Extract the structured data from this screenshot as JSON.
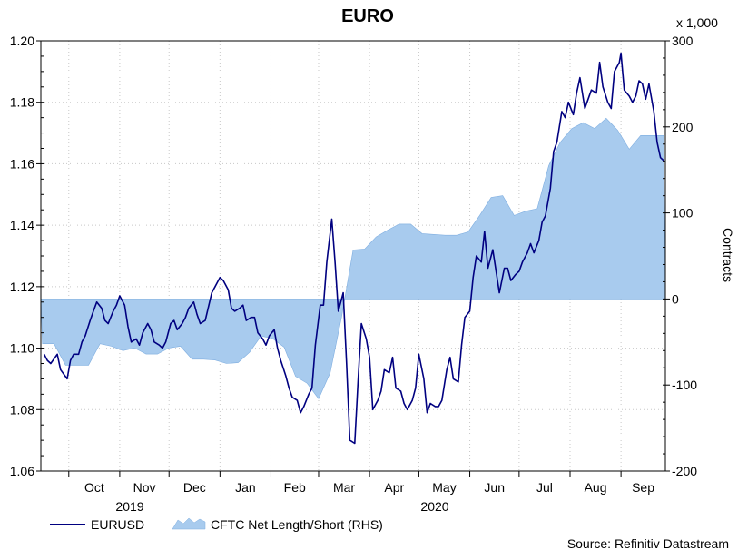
{
  "chart_data": {
    "type": "line",
    "title": "EURO",
    "y_left": {
      "label": "",
      "range": [
        1.06,
        1.2
      ],
      "ticks": [
        "1.06",
        "1.08",
        "1.10",
        "1.12",
        "1.14",
        "1.16",
        "1.18",
        "1.20"
      ]
    },
    "y_right": {
      "label": "Contracts",
      "unit": "x 1,000",
      "range": [
        -200,
        300
      ],
      "ticks": [
        "-200",
        "-100",
        "0",
        "100",
        "200",
        "300"
      ]
    },
    "x_axis": {
      "months": [
        "Oct",
        "Nov",
        "Dec",
        "Jan",
        "Feb",
        "Mar",
        "Apr",
        "May",
        "Jun",
        "Jul",
        "Aug",
        "Sep"
      ],
      "years": [
        "2019",
        "2020"
      ]
    },
    "grid": true,
    "legend_position": "bottom-left",
    "series": [
      {
        "name": "EURUSD",
        "axis": "left",
        "color": "#000080",
        "points": [
          [
            "2019-09-16",
            1.098
          ],
          [
            "2019-09-18",
            1.096
          ],
          [
            "2019-09-20",
            1.095
          ],
          [
            "2019-09-24",
            1.098
          ],
          [
            "2019-09-26",
            1.093
          ],
          [
            "2019-09-30",
            1.09
          ],
          [
            "2019-10-02",
            1.096
          ],
          [
            "2019-10-04",
            1.098
          ],
          [
            "2019-10-07",
            1.098
          ],
          [
            "2019-10-09",
            1.102
          ],
          [
            "2019-10-11",
            1.104
          ],
          [
            "2019-10-14",
            1.109
          ],
          [
            "2019-10-16",
            1.112
          ],
          [
            "2019-10-18",
            1.115
          ],
          [
            "2019-10-21",
            1.113
          ],
          [
            "2019-10-23",
            1.109
          ],
          [
            "2019-10-25",
            1.108
          ],
          [
            "2019-10-28",
            1.112
          ],
          [
            "2019-10-30",
            1.114
          ],
          [
            "2019-11-01",
            1.117
          ],
          [
            "2019-11-04",
            1.114
          ],
          [
            "2019-11-06",
            1.107
          ],
          [
            "2019-11-08",
            1.102
          ],
          [
            "2019-11-11",
            1.103
          ],
          [
            "2019-11-13",
            1.101
          ],
          [
            "2019-11-15",
            1.105
          ],
          [
            "2019-11-18",
            1.108
          ],
          [
            "2019-11-20",
            1.106
          ],
          [
            "2019-11-22",
            1.102
          ],
          [
            "2019-11-25",
            1.101
          ],
          [
            "2019-11-27",
            1.1
          ],
          [
            "2019-11-29",
            1.102
          ],
          [
            "2019-12-02",
            1.108
          ],
          [
            "2019-12-04",
            1.109
          ],
          [
            "2019-12-06",
            1.106
          ],
          [
            "2019-12-09",
            1.108
          ],
          [
            "2019-12-11",
            1.11
          ],
          [
            "2019-12-13",
            1.113
          ],
          [
            "2019-12-16",
            1.115
          ],
          [
            "2019-12-18",
            1.111
          ],
          [
            "2019-12-20",
            1.108
          ],
          [
            "2019-12-23",
            1.109
          ],
          [
            "2019-12-27",
            1.118
          ],
          [
            "2019-12-30",
            1.121
          ],
          [
            "2020-01-01",
            1.123
          ],
          [
            "2020-01-03",
            1.122
          ],
          [
            "2020-01-06",
            1.119
          ],
          [
            "2020-01-08",
            1.113
          ],
          [
            "2020-01-10",
            1.112
          ],
          [
            "2020-01-13",
            1.113
          ],
          [
            "2020-01-15",
            1.114
          ],
          [
            "2020-01-17",
            1.109
          ],
          [
            "2020-01-20",
            1.11
          ],
          [
            "2020-01-22",
            1.11
          ],
          [
            "2020-01-24",
            1.105
          ],
          [
            "2020-01-27",
            1.103
          ],
          [
            "2020-01-29",
            1.101
          ],
          [
            "2020-01-31",
            1.104
          ],
          [
            "2020-02-03",
            1.106
          ],
          [
            "2020-02-05",
            1.1
          ],
          [
            "2020-02-07",
            1.096
          ],
          [
            "2020-02-10",
            1.091
          ],
          [
            "2020-02-12",
            1.087
          ],
          [
            "2020-02-14",
            1.084
          ],
          [
            "2020-02-17",
            1.083
          ],
          [
            "2020-02-19",
            1.079
          ],
          [
            "2020-02-21",
            1.081
          ],
          [
            "2020-02-24",
            1.085
          ],
          [
            "2020-02-26",
            1.087
          ],
          [
            "2020-02-28",
            1.101
          ],
          [
            "2020-03-02",
            1.114
          ],
          [
            "2020-03-04",
            1.114
          ],
          [
            "2020-03-06",
            1.128
          ],
          [
            "2020-03-09",
            1.142
          ],
          [
            "2020-03-11",
            1.128
          ],
          [
            "2020-03-13",
            1.112
          ],
          [
            "2020-03-16",
            1.118
          ],
          [
            "2020-03-18",
            1.095
          ],
          [
            "2020-03-20",
            1.07
          ],
          [
            "2020-03-23",
            1.069
          ],
          [
            "2020-03-25",
            1.089
          ],
          [
            "2020-03-27",
            1.108
          ],
          [
            "2020-03-30",
            1.103
          ],
          [
            "2020-04-01",
            1.097
          ],
          [
            "2020-04-03",
            1.08
          ],
          [
            "2020-04-06",
            1.083
          ],
          [
            "2020-04-08",
            1.086
          ],
          [
            "2020-04-10",
            1.093
          ],
          [
            "2020-04-13",
            1.092
          ],
          [
            "2020-04-15",
            1.097
          ],
          [
            "2020-04-17",
            1.087
          ],
          [
            "2020-04-20",
            1.086
          ],
          [
            "2020-04-22",
            1.082
          ],
          [
            "2020-04-24",
            1.08
          ],
          [
            "2020-04-27",
            1.083
          ],
          [
            "2020-04-29",
            1.087
          ],
          [
            "2020-05-01",
            1.098
          ],
          [
            "2020-05-04",
            1.09
          ],
          [
            "2020-05-06",
            1.079
          ],
          [
            "2020-05-08",
            1.082
          ],
          [
            "2020-05-11",
            1.081
          ],
          [
            "2020-05-13",
            1.081
          ],
          [
            "2020-05-15",
            1.083
          ],
          [
            "2020-05-18",
            1.093
          ],
          [
            "2020-05-20",
            1.097
          ],
          [
            "2020-05-22",
            1.09
          ],
          [
            "2020-05-25",
            1.089
          ],
          [
            "2020-05-27",
            1.101
          ],
          [
            "2020-05-29",
            1.11
          ],
          [
            "2020-06-01",
            1.112
          ],
          [
            "2020-06-03",
            1.123
          ],
          [
            "2020-06-05",
            1.13
          ],
          [
            "2020-06-08",
            1.128
          ],
          [
            "2020-06-10",
            1.138
          ],
          [
            "2020-06-12",
            1.126
          ],
          [
            "2020-06-15",
            1.132
          ],
          [
            "2020-06-17",
            1.125
          ],
          [
            "2020-06-19",
            1.118
          ],
          [
            "2020-06-22",
            1.126
          ],
          [
            "2020-06-24",
            1.126
          ],
          [
            "2020-06-26",
            1.122
          ],
          [
            "2020-06-29",
            1.124
          ],
          [
            "2020-07-01",
            1.125
          ],
          [
            "2020-07-03",
            1.128
          ],
          [
            "2020-07-06",
            1.131
          ],
          [
            "2020-07-08",
            1.134
          ],
          [
            "2020-07-10",
            1.131
          ],
          [
            "2020-07-13",
            1.135
          ],
          [
            "2020-07-15",
            1.141
          ],
          [
            "2020-07-17",
            1.143
          ],
          [
            "2020-07-20",
            1.152
          ],
          [
            "2020-07-22",
            1.164
          ],
          [
            "2020-07-24",
            1.167
          ],
          [
            "2020-07-27",
            1.177
          ],
          [
            "2020-07-29",
            1.175
          ],
          [
            "2020-07-31",
            1.18
          ],
          [
            "2020-08-03",
            1.176
          ],
          [
            "2020-08-05",
            1.183
          ],
          [
            "2020-08-07",
            1.188
          ],
          [
            "2020-08-10",
            1.178
          ],
          [
            "2020-08-12",
            1.181
          ],
          [
            "2020-08-14",
            1.184
          ],
          [
            "2020-08-17",
            1.183
          ],
          [
            "2020-08-19",
            1.193
          ],
          [
            "2020-08-21",
            1.185
          ],
          [
            "2020-08-24",
            1.18
          ],
          [
            "2020-08-26",
            1.178
          ],
          [
            "2020-08-28",
            1.19
          ],
          [
            "2020-08-31",
            1.193
          ],
          [
            "2020-09-01",
            1.196
          ],
          [
            "2020-09-03",
            1.184
          ],
          [
            "2020-09-06",
            1.182
          ],
          [
            "2020-09-08",
            1.18
          ],
          [
            "2020-09-10",
            1.182
          ],
          [
            "2020-09-12",
            1.187
          ],
          [
            "2020-09-14",
            1.186
          ],
          [
            "2020-09-16",
            1.181
          ],
          [
            "2020-09-18",
            1.186
          ],
          [
            "2020-09-21",
            1.177
          ],
          [
            "2020-09-23",
            1.167
          ],
          [
            "2020-09-25",
            1.162
          ],
          [
            "2020-09-27",
            1.161
          ]
        ]
      },
      {
        "name": "CFTC Net Length/Short (RHS)",
        "axis": "right",
        "type": "area",
        "color": "#a8cbee",
        "edge_color": "#7faee0",
        "points": [
          [
            "2019-09-14",
            0
          ],
          [
            "2019-09-15",
            -52
          ],
          [
            "2019-09-22",
            -52
          ],
          [
            "2019-09-29",
            -77
          ],
          [
            "2019-10-06",
            -77
          ],
          [
            "2019-10-13",
            -77
          ],
          [
            "2019-10-20",
            -52
          ],
          [
            "2019-10-27",
            -55
          ],
          [
            "2019-11-03",
            -60
          ],
          [
            "2019-11-10",
            -57
          ],
          [
            "2019-11-17",
            -64
          ],
          [
            "2019-11-24",
            -64
          ],
          [
            "2019-12-01",
            -57
          ],
          [
            "2019-12-08",
            -55
          ],
          [
            "2019-12-15",
            -70
          ],
          [
            "2019-12-22",
            -70
          ],
          [
            "2019-12-29",
            -71
          ],
          [
            "2020-01-05",
            -75
          ],
          [
            "2020-01-12",
            -74
          ],
          [
            "2020-01-19",
            -62
          ],
          [
            "2020-01-26",
            -43
          ],
          [
            "2020-02-02",
            -46
          ],
          [
            "2020-02-09",
            -56
          ],
          [
            "2020-02-16",
            -90
          ],
          [
            "2020-02-23",
            -98
          ],
          [
            "2020-03-01",
            -116
          ],
          [
            "2020-03-08",
            -86
          ],
          [
            "2020-03-15",
            -21
          ],
          [
            "2020-03-22",
            57
          ],
          [
            "2020-03-29",
            58
          ],
          [
            "2020-04-05",
            72
          ],
          [
            "2020-04-12",
            80
          ],
          [
            "2020-04-19",
            87
          ],
          [
            "2020-04-26",
            87
          ],
          [
            "2020-05-03",
            76
          ],
          [
            "2020-05-10",
            75
          ],
          [
            "2020-05-17",
            74
          ],
          [
            "2020-05-24",
            74
          ],
          [
            "2020-05-31",
            78
          ],
          [
            "2020-06-07",
            97
          ],
          [
            "2020-06-14",
            118
          ],
          [
            "2020-06-21",
            120
          ],
          [
            "2020-06-28",
            97
          ],
          [
            "2020-07-05",
            102
          ],
          [
            "2020-07-12",
            105
          ],
          [
            "2020-07-19",
            155
          ],
          [
            "2020-07-26",
            182
          ],
          [
            "2020-08-02",
            198
          ],
          [
            "2020-08-09",
            205
          ],
          [
            "2020-08-16",
            198
          ],
          [
            "2020-08-23",
            210
          ],
          [
            "2020-08-30",
            196
          ],
          [
            "2020-09-06",
            174
          ],
          [
            "2020-09-13",
            190
          ],
          [
            "2020-09-20",
            190
          ],
          [
            "2020-09-27",
            190
          ],
          [
            "2020-09-28",
            0
          ]
        ]
      }
    ]
  },
  "source": "Source: Refinitiv Datastream",
  "colors": {
    "grid": "#c8c8c8",
    "axis": "#000000",
    "line": "#000080",
    "area": "#a8cbee"
  }
}
